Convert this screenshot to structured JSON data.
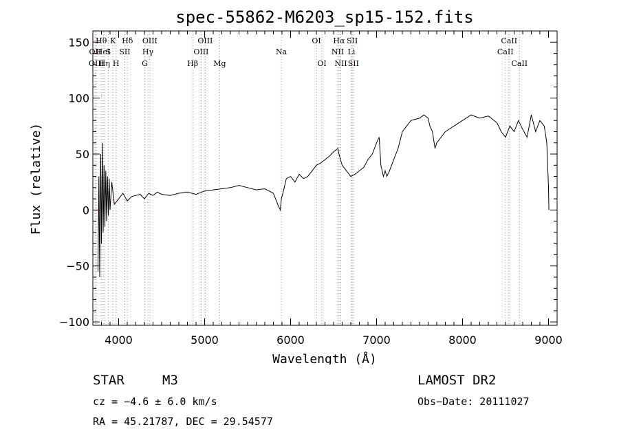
{
  "chart_data": {
    "type": "line",
    "title": "spec-55862-M6203_sp15-152.fits",
    "xlabel": "Wavelength (Å)",
    "ylabel": "Flux (relative)",
    "xlim": [
      3700,
      9100
    ],
    "ylim": [
      -103,
      160
    ],
    "x_ticks": [
      4000,
      5000,
      6000,
      7000,
      8000,
      9000
    ],
    "y_ticks": [
      -100,
      -50,
      0,
      50,
      100,
      150
    ],
    "grid": false,
    "series": [
      {
        "x": [
          3760,
          3770,
          3780,
          3790,
          3800,
          3810,
          3820,
          3830,
          3840,
          3850,
          3860,
          3870,
          3880,
          3890,
          3900,
          3920,
          3950,
          4000,
          4050,
          4100,
          4150,
          4200,
          4250,
          4300,
          4350,
          4400,
          4450,
          4500,
          4600,
          4700,
          4800,
          4900,
          5000,
          5100,
          5200,
          5300,
          5400,
          5500,
          5600,
          5700,
          5800,
          5850,
          5880,
          5893,
          5910,
          5950,
          6000,
          6050,
          6100,
          6150,
          6200,
          6250,
          6300,
          6350,
          6400,
          6450,
          6500,
          6550,
          6563,
          6580,
          6600,
          6650,
          6700,
          6750,
          6800,
          6850,
          6900,
          6950,
          7000,
          7030,
          7050,
          7080,
          7100,
          7120,
          7150,
          7200,
          7250,
          7300,
          7400,
          7500,
          7550,
          7600,
          7620,
          7650,
          7680,
          7700,
          7750,
          7800,
          7900,
          8000,
          8100,
          8200,
          8300,
          8400,
          8450,
          8500,
          8550,
          8600,
          8650,
          8700,
          8750,
          8800,
          8850,
          8900,
          8950,
          8980,
          9000,
          9005
        ],
        "y": [
          -55,
          30,
          -60,
          50,
          -30,
          60,
          -20,
          40,
          -15,
          35,
          -10,
          30,
          -5,
          28,
          0,
          25,
          5,
          10,
          15,
          8,
          12,
          13,
          14,
          10,
          15,
          13,
          16,
          14,
          13,
          15,
          16,
          14,
          17,
          18,
          19,
          20,
          22,
          20,
          18,
          19,
          15,
          5,
          0,
          10,
          15,
          28,
          30,
          25,
          32,
          28,
          30,
          35,
          40,
          42,
          45,
          48,
          52,
          55,
          50,
          45,
          40,
          35,
          30,
          32,
          35,
          38,
          45,
          50,
          60,
          65,
          40,
          30,
          35,
          30,
          35,
          45,
          55,
          70,
          80,
          82,
          85,
          82,
          75,
          70,
          55,
          60,
          65,
          70,
          75,
          80,
          85,
          82,
          84,
          78,
          70,
          65,
          75,
          70,
          80,
          72,
          65,
          85,
          70,
          80,
          75,
          60,
          20,
          0
        ]
      }
    ],
    "lines": [
      {
        "label": "OII",
        "x": 3727,
        "row": 2
      },
      {
        "label": "OIII",
        "x": 3740,
        "row": 3
      },
      {
        "label": "Hθ",
        "x": 3798,
        "row": 1
      },
      {
        "label": "HeI",
        "x": 3820,
        "row": 2
      },
      {
        "label": "Hη",
        "x": 3835,
        "row": 3
      },
      {
        "label": "K",
        "x": 3934,
        "row": 1
      },
      {
        "label": "S",
        "x": 3880,
        "row": 2
      },
      {
        "label": "H",
        "x": 3969,
        "row": 3
      },
      {
        "label": "SII",
        "x": 4072,
        "row": 2
      },
      {
        "label": "Hδ",
        "x": 4102,
        "row": 1
      },
      {
        "label": "OIII",
        "x": 4363,
        "row": 1
      },
      {
        "label": "Hγ",
        "x": 4340,
        "row": 2
      },
      {
        "label": "G",
        "x": 4304,
        "row": 3
      },
      {
        "label": "Hβ",
        "x": 4861,
        "row": 3
      },
      {
        "label": "OIII",
        "x": 5007,
        "row": 1
      },
      {
        "label": "OIII",
        "x": 4959,
        "row": 2
      },
      {
        "label": "Mg",
        "x": 5175,
        "row": 3
      },
      {
        "label": "Na",
        "x": 5893,
        "row": 2
      },
      {
        "label": "OI",
        "x": 6300,
        "row": 1
      },
      {
        "label": "OI",
        "x": 6364,
        "row": 3
      },
      {
        "label": "Hα",
        "x": 6563,
        "row": 1
      },
      {
        "label": "NII",
        "x": 6548,
        "row": 2
      },
      {
        "label": "NII",
        "x": 6584,
        "row": 3
      },
      {
        "label": "SII",
        "x": 6717,
        "row": 1
      },
      {
        "label": "Li",
        "x": 6708,
        "row": 2
      },
      {
        "label": "SII",
        "x": 6731,
        "row": 3
      },
      {
        "label": "CaII",
        "x": 8542,
        "row": 1
      },
      {
        "label": "CaII",
        "x": 8498,
        "row": 2
      },
      {
        "label": "CaII",
        "x": 8662,
        "row": 3
      }
    ]
  },
  "info": {
    "object_type": "STAR",
    "subclass": "M3",
    "survey": "LAMOST DR2",
    "redshift": "cz = −4.6 ± 6.0 km/s",
    "obs_date": "Obs−Date: 20111027",
    "coords": "RA =  45.21787, DEC =  29.54577"
  }
}
